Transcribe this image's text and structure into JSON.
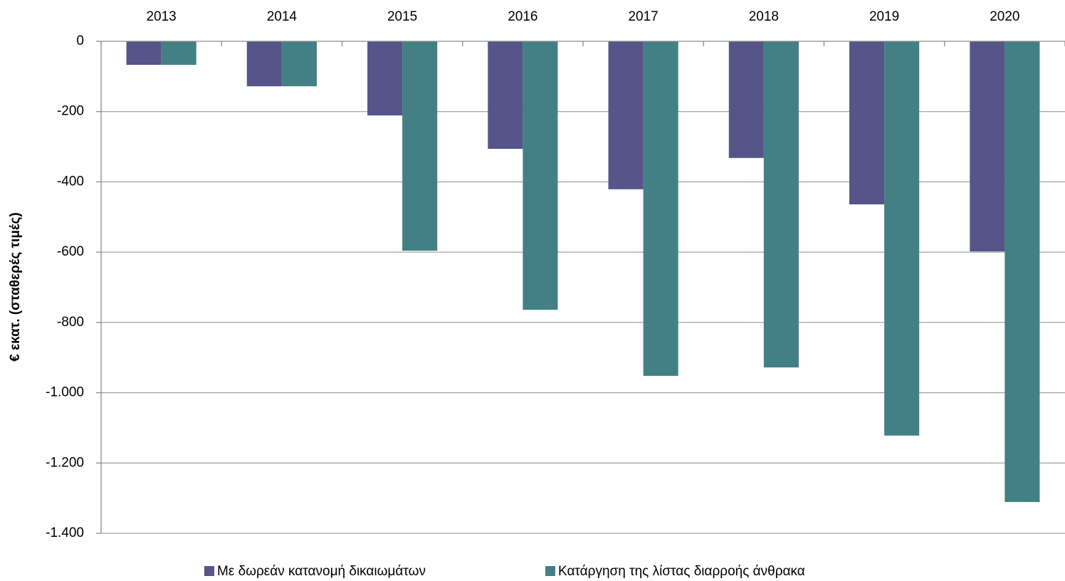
{
  "chart_data": {
    "type": "bar",
    "y_label": "€ εκατ. (σταθερές τιμές)",
    "categories": [
      "2013",
      "2014",
      "2015",
      "2016",
      "2017",
      "2018",
      "2019",
      "2020"
    ],
    "series": [
      {
        "name": "Με δωρεάν κατανομή δικαιωμάτων",
        "color": "#55558a",
        "values": [
          -67,
          -128,
          -211,
          -306,
          -421,
          -332,
          -464,
          -598
        ]
      },
      {
        "name": "Κατάργηση της λίστας διαρροής άνθρακα",
        "color": "#428086",
        "values": [
          -67,
          -128,
          -596,
          -764,
          -952,
          -928,
          -1122,
          -1311
        ]
      }
    ],
    "ylim": [
      -1400,
      0
    ],
    "yticks": [
      0,
      -200,
      -400,
      -600,
      -800,
      {
        "value": -1000,
        "label": "-1.000"
      },
      {
        "value": -1200,
        "label": "-1.200"
      },
      {
        "value": -1400,
        "label": "-1.400"
      }
    ],
    "grid": true,
    "legend": "bottom"
  }
}
